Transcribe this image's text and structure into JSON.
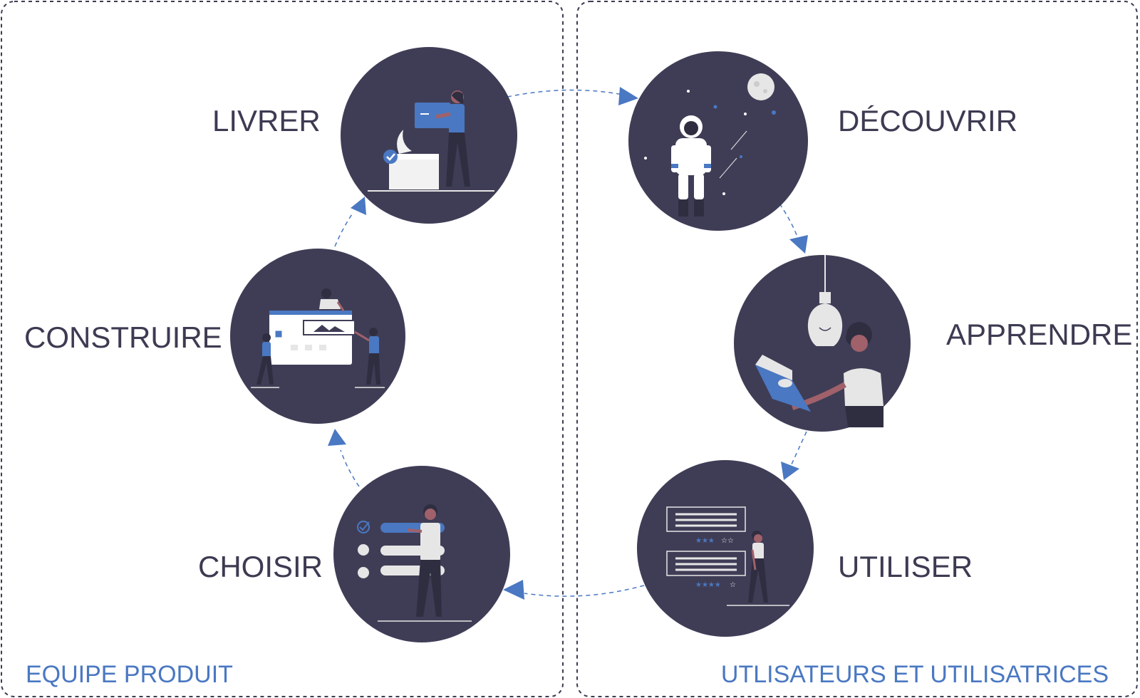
{
  "panels": {
    "left": {
      "caption": "EQUIPE PRODUIT"
    },
    "right": {
      "caption": "UTLISATEURS ET UTILISATRICES"
    }
  },
  "stages": {
    "livrer": {
      "label": "LIVRER",
      "icon": "delivery-illustration-icon"
    },
    "construire": {
      "label": "CONSTRUIRE",
      "icon": "building-website-illustration-icon"
    },
    "choisir": {
      "label": "CHOISIR",
      "icon": "checklist-choice-illustration-icon"
    },
    "decouvrir": {
      "label": "DÉCOUVRIR",
      "icon": "astronaut-illustration-icon"
    },
    "apprendre": {
      "label": "APPRENDRE",
      "icon": "reading-book-lightbulb-illustration-icon"
    },
    "utiliser": {
      "label": "UTILISER",
      "icon": "rating-reviews-illustration-icon"
    }
  },
  "colors": {
    "disc": "#3f3d56",
    "accent": "#4a78c2",
    "text": "#3d3b52",
    "caption": "#4a78c2"
  }
}
